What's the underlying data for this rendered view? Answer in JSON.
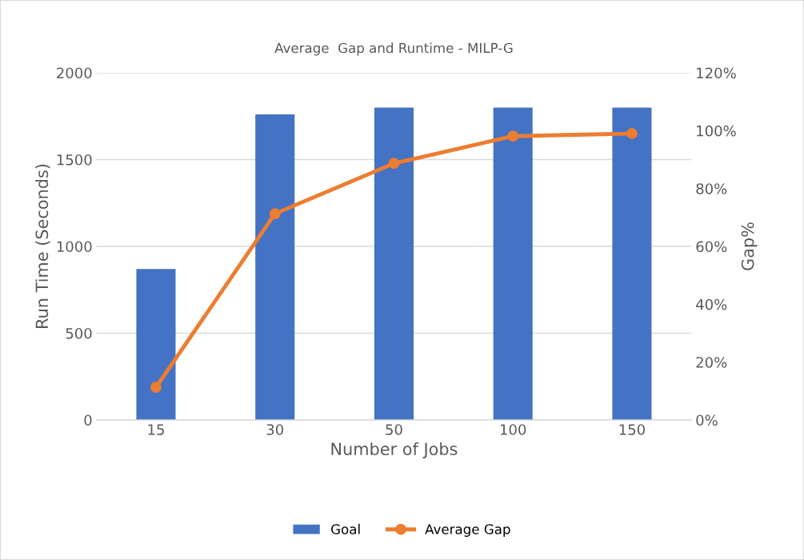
{
  "chart_data": {
    "type": "bar",
    "title": "Average  Gap and Runtime - MILP-G",
    "xlabel": "Number of Jobs",
    "ylabel": "Run Time (Seconds)",
    "y2label": "Gap%",
    "categories": [
      "15",
      "30",
      "50",
      "100",
      "150"
    ],
    "series": [
      {
        "name": "Goal",
        "color": "#4472c4",
        "values": [
          870,
          1760,
          1800,
          1800,
          1800
        ]
      },
      {
        "name": "Average Gap",
        "type": "line",
        "axis": "y2",
        "color": "#ed7d31",
        "marker": "circle",
        "values": [
          11.3,
          71.3,
          88.7,
          98.1,
          99.0
        ]
      }
    ],
    "ylim": [
      0,
      2000
    ],
    "yticks": [
      0,
      500,
      1000,
      1500,
      2000
    ],
    "y2lim": [
      0,
      120
    ],
    "y2ticks": [
      {
        "value": 0,
        "label": "0%"
      },
      {
        "value": 20,
        "label": "20%"
      },
      {
        "value": 40,
        "label": "40%"
      },
      {
        "value": 60,
        "label": "60%"
      },
      {
        "value": 80,
        "label": "80%"
      },
      {
        "value": 100,
        "label": "100%"
      },
      {
        "value": 120,
        "label": "120%"
      }
    ],
    "grid": "y",
    "legend": "bottom"
  }
}
